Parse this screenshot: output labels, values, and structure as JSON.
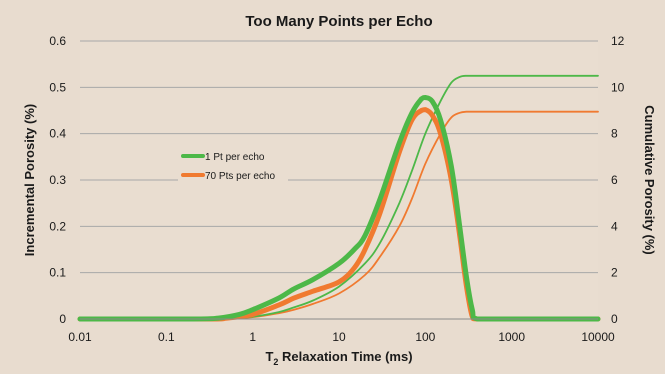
{
  "chart_data": {
    "type": "line",
    "title": "Too Many Points per Echo",
    "xlabel": {
      "prefix": "T",
      "subscript": "2",
      "suffix": " Relaxation Time (ms)"
    },
    "ylabel": "Incremental Porosity (%)",
    "y2label": "Cumulative Porosity (%)",
    "xscale": "log",
    "xlim": [
      0.01,
      10000
    ],
    "ylim": [
      0,
      0.6
    ],
    "y2lim": [
      0,
      12
    ],
    "x_ticks": [
      0.01,
      0.1,
      1,
      10,
      100,
      1000,
      10000
    ],
    "x_tick_labels": [
      "0.01",
      "0.1",
      "1",
      "10",
      "100",
      "1000",
      "10000"
    ],
    "y_ticks": [
      0,
      0.1,
      0.2,
      0.3,
      0.4,
      0.5,
      0.6
    ],
    "y_tick_labels": [
      "0",
      "0.1",
      "0.2",
      "0.3",
      "0.4",
      "0.5",
      "0.6"
    ],
    "y2_ticks": [
      0,
      2,
      4,
      6,
      8,
      10,
      12
    ],
    "y2_tick_labels": [
      "0",
      "2",
      "4",
      "6",
      "8",
      "10",
      "12"
    ],
    "grid": "horizontal",
    "legend_position": "left-center",
    "legend": [
      {
        "label": "1 Pt per echo",
        "color": "#4db848"
      },
      {
        "label": "70 Pts per echo",
        "color": "#f07a30"
      }
    ],
    "colors": {
      "background": "#e8dccf",
      "plot_area": "#e9ddd0",
      "gridline": "#a8a8a8",
      "green": "#4db848",
      "orange": "#f07a30"
    },
    "series": [
      {
        "name": "1 Pt per echo",
        "axis": "left",
        "kind": "incremental",
        "color": "#4db848",
        "x": [
          0.01,
          0.2,
          0.4,
          0.7,
          1,
          2,
          3,
          5,
          10,
          15,
          20,
          30,
          50,
          70,
          90,
          100,
          120,
          150,
          200,
          250,
          300,
          350,
          400,
          1000,
          10000
        ],
        "y": [
          0,
          0,
          0.002,
          0.01,
          0.02,
          0.045,
          0.065,
          0.085,
          0.12,
          0.15,
          0.18,
          0.26,
          0.38,
          0.445,
          0.475,
          0.478,
          0.47,
          0.43,
          0.33,
          0.2,
          0.09,
          0.02,
          0,
          0,
          0
        ]
      },
      {
        "name": "70 Pts per echo",
        "axis": "left",
        "kind": "incremental",
        "color": "#f07a30",
        "x": [
          0.01,
          0.3,
          0.5,
          1,
          2,
          3,
          5,
          10,
          15,
          20,
          30,
          50,
          70,
          90,
          100,
          120,
          150,
          200,
          250,
          300,
          350,
          400,
          1000,
          10000
        ],
        "y": [
          0,
          0,
          0.002,
          0.01,
          0.03,
          0.045,
          0.06,
          0.08,
          0.11,
          0.15,
          0.23,
          0.36,
          0.43,
          0.45,
          0.452,
          0.44,
          0.4,
          0.3,
          0.18,
          0.07,
          0.005,
          0,
          0,
          0
        ]
      },
      {
        "name": "1 Pt per echo",
        "axis": "right",
        "kind": "cumulative",
        "color": "#4db848",
        "x": [
          0.01,
          0.3,
          0.5,
          1,
          2,
          3,
          5,
          10,
          20,
          30,
          50,
          70,
          100,
          150,
          200,
          250,
          300,
          350,
          1000,
          10000
        ],
        "y": [
          0,
          0,
          0.02,
          0.1,
          0.3,
          0.5,
          0.8,
          1.4,
          2.4,
          3.3,
          5.0,
          6.4,
          8.0,
          9.4,
          10.2,
          10.45,
          10.5,
          10.5,
          10.5,
          10.5
        ]
      },
      {
        "name": "70 Pts per echo",
        "axis": "right",
        "kind": "cumulative",
        "color": "#f07a30",
        "x": [
          0.01,
          0.3,
          0.5,
          1,
          2,
          3,
          5,
          10,
          20,
          30,
          50,
          70,
          100,
          150,
          200,
          250,
          300,
          350,
          1000,
          10000
        ],
        "y": [
          0,
          0,
          0.02,
          0.08,
          0.25,
          0.4,
          0.65,
          1.1,
          1.9,
          2.7,
          4.0,
          5.2,
          6.7,
          8.0,
          8.7,
          8.9,
          8.95,
          8.95,
          8.95,
          8.95
        ]
      }
    ]
  }
}
